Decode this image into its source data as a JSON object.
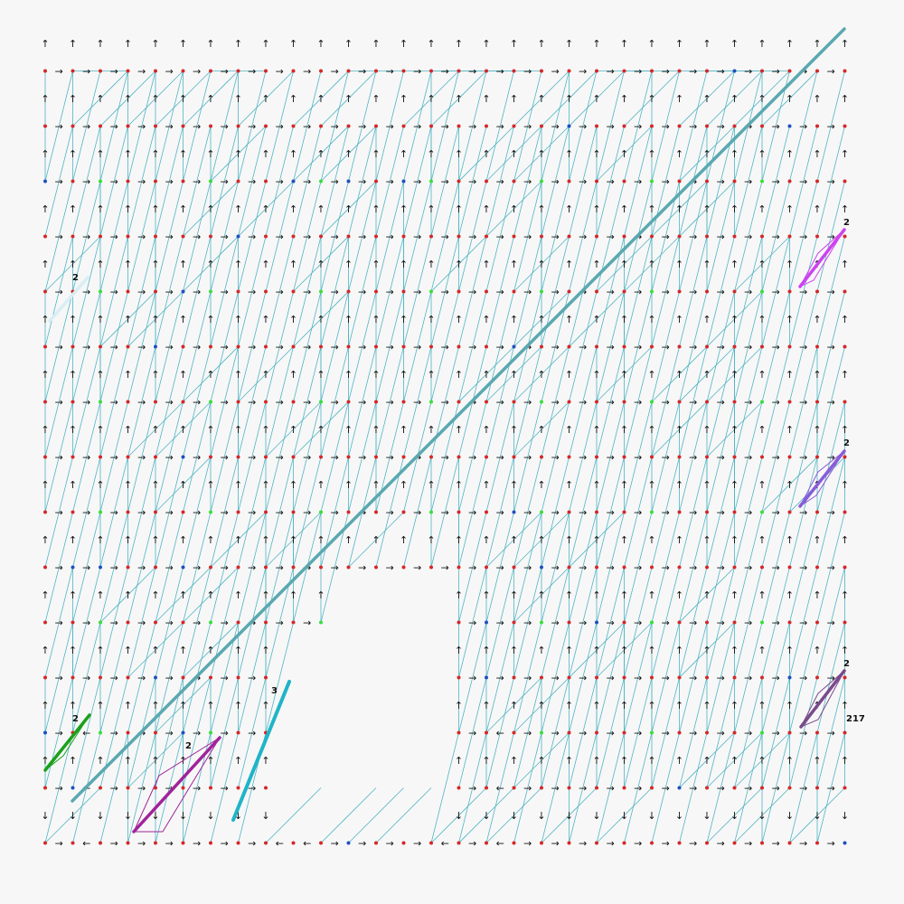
{
  "diagram": {
    "grid": {
      "cols": 30,
      "rows": 30
    },
    "colors": {
      "background": "#f7f7f7",
      "mesh_edge": "#4fb4c4",
      "node_default": "#d62728",
      "node_blue": "#1f4fbf",
      "node_green": "#38e038",
      "arrow": "#111111",
      "main_path": "#5aa8b0"
    },
    "icons": {
      "up": "↑",
      "right": "→",
      "left": "←",
      "down": "↓"
    },
    "path_labels": [
      {
        "text": "2",
        "color": "#d8eef4"
      },
      {
        "text": "2",
        "color": "#cc44ee"
      },
      {
        "text": "2",
        "color": "#8a5cd8"
      },
      {
        "text": "2",
        "color": "#7a4a8c"
      },
      {
        "text": "217",
        "color": "#5aa8b0"
      },
      {
        "text": "2",
        "color": "#1ca01c"
      },
      {
        "text": "2",
        "color": "#a0239a"
      },
      {
        "text": "3",
        "color": "#1fb4c8"
      }
    ]
  }
}
